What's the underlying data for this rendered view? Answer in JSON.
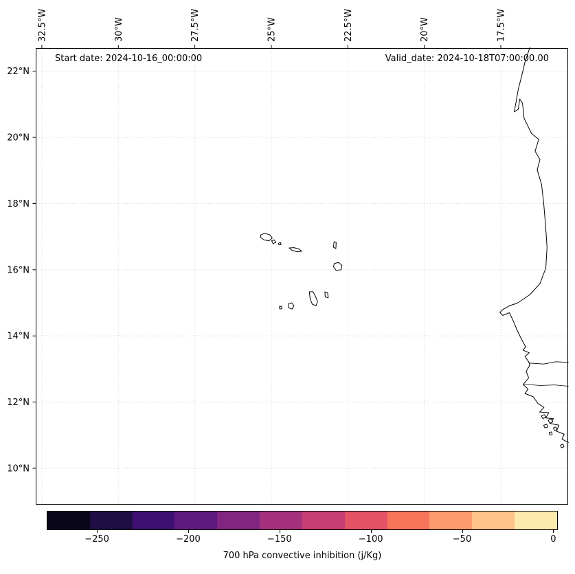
{
  "annotations": {
    "start_date": "Start date: 2024-10-16_00:00:00",
    "valid_date": "Valid_date: 2024-10-18T07:00:00.00"
  },
  "map": {
    "extent": {
      "lon_min": -32.7,
      "lon_max": -15.3,
      "lat_min": 8.9,
      "lat_max": 22.7
    },
    "axes": {
      "lon_ticks": [
        {
          "value": -32.5,
          "label": "32.5°W"
        },
        {
          "value": -30,
          "label": "30°W"
        },
        {
          "value": -27.5,
          "label": "27.5°W"
        },
        {
          "value": -25,
          "label": "25°W"
        },
        {
          "value": -22.5,
          "label": "22.5°W"
        },
        {
          "value": -20,
          "label": "20°W"
        },
        {
          "value": -17.5,
          "label": "17.5°W"
        }
      ],
      "lat_ticks": [
        {
          "value": 22,
          "label": "22°N"
        },
        {
          "value": 20,
          "label": "20°N"
        },
        {
          "value": 18,
          "label": "18°N"
        },
        {
          "value": 16,
          "label": "16°N"
        },
        {
          "value": 14,
          "label": "14°N"
        },
        {
          "value": 12,
          "label": "12°N"
        },
        {
          "value": 10,
          "label": "10°N"
        }
      ]
    },
    "grid": {
      "color": "#dcc7c7",
      "style": "dotted"
    },
    "coastlines": {
      "africa_mainland": [
        [
          -16.55,
          22.72
        ],
        [
          -16.72,
          22.25
        ],
        [
          -16.82,
          21.85
        ],
        [
          -16.93,
          21.45
        ],
        [
          -17.0,
          21.08
        ],
        [
          -17.06,
          20.77
        ],
        [
          -16.93,
          20.85
        ],
        [
          -16.88,
          21.16
        ],
        [
          -16.79,
          21.03
        ],
        [
          -16.74,
          20.58
        ],
        [
          -16.5,
          20.12
        ],
        [
          -16.26,
          19.94
        ],
        [
          -16.38,
          19.58
        ],
        [
          -16.22,
          19.33
        ],
        [
          -16.31,
          19.02
        ],
        [
          -16.17,
          18.58
        ],
        [
          -16.1,
          18.02
        ],
        [
          -16.04,
          17.38
        ],
        [
          -15.99,
          16.68
        ],
        [
          -16.03,
          16.05
        ],
        [
          -16.22,
          15.58
        ],
        [
          -16.56,
          15.24
        ],
        [
          -16.96,
          14.99
        ],
        [
          -17.22,
          14.91
        ],
        [
          -17.43,
          14.8
        ],
        [
          -17.53,
          14.71
        ],
        [
          -17.44,
          14.62
        ],
        [
          -17.22,
          14.7
        ],
        [
          -17.1,
          14.47
        ],
        [
          -16.97,
          14.18
        ],
        [
          -16.84,
          13.93
        ],
        [
          -16.69,
          13.67
        ],
        [
          -16.77,
          13.57
        ],
        [
          -16.57,
          13.49
        ],
        [
          -16.71,
          13.38
        ],
        [
          -16.59,
          13.22
        ],
        [
          -16.55,
          13.12
        ],
        [
          -16.67,
          12.93
        ],
        [
          -16.59,
          12.73
        ],
        [
          -16.77,
          12.53
        ],
        [
          -16.61,
          12.39
        ],
        [
          -16.71,
          12.26
        ],
        [
          -16.44,
          12.16
        ],
        [
          -16.29,
          11.96
        ],
        [
          -16.09,
          11.84
        ],
        [
          -16.23,
          11.7
        ],
        [
          -15.93,
          11.68
        ],
        [
          -16.03,
          11.52
        ],
        [
          -15.78,
          11.5
        ],
        [
          -15.88,
          11.35
        ],
        [
          -15.6,
          11.3
        ],
        [
          -15.68,
          11.12
        ],
        [
          -15.43,
          11.03
        ],
        [
          -15.5,
          10.88
        ],
        [
          -15.29,
          10.78
        ]
      ],
      "rivers": [
        [
          [
            -16.58,
            13.18
          ],
          [
            -16.1,
            13.15
          ],
          [
            -15.7,
            13.22
          ],
          [
            -15.29,
            13.2
          ]
        ],
        [
          [
            -16.75,
            12.54
          ],
          [
            -16.2,
            12.5
          ],
          [
            -15.75,
            12.52
          ],
          [
            -15.29,
            12.48
          ]
        ]
      ],
      "africa_islands": [
        [
          [
            -16.18,
            11.58
          ],
          [
            -16.08,
            11.62
          ],
          [
            -16.02,
            11.55
          ],
          [
            -16.12,
            11.5
          ]
        ],
        [
          [
            -15.95,
            11.45
          ],
          [
            -15.85,
            11.48
          ],
          [
            -15.8,
            11.4
          ],
          [
            -15.9,
            11.36
          ]
        ],
        [
          [
            -16.1,
            11.3
          ],
          [
            -16.0,
            11.33
          ],
          [
            -15.96,
            11.25
          ],
          [
            -16.06,
            11.22
          ]
        ],
        [
          [
            -15.78,
            11.22
          ],
          [
            -15.7,
            11.25
          ],
          [
            -15.66,
            11.17
          ],
          [
            -15.75,
            11.14
          ]
        ],
        [
          [
            -15.92,
            11.08
          ],
          [
            -15.84,
            11.1
          ],
          [
            -15.82,
            11.02
          ],
          [
            -15.9,
            11.0
          ]
        ],
        [
          [
            -15.55,
            10.7
          ],
          [
            -15.47,
            10.73
          ],
          [
            -15.44,
            10.65
          ],
          [
            -15.52,
            10.62
          ]
        ]
      ],
      "cape_verde_islands": [
        [
          [
            -25.36,
            17.05
          ],
          [
            -25.22,
            17.1
          ],
          [
            -25.06,
            17.06
          ],
          [
            -24.97,
            16.96
          ],
          [
            -25.07,
            16.88
          ],
          [
            -25.24,
            16.9
          ],
          [
            -25.34,
            16.97
          ]
        ],
        [
          [
            -24.99,
            16.88
          ],
          [
            -24.9,
            16.9
          ],
          [
            -24.85,
            16.83
          ],
          [
            -24.94,
            16.79
          ]
        ],
        [
          [
            -24.77,
            16.8
          ],
          [
            -24.7,
            16.82
          ],
          [
            -24.68,
            16.76
          ],
          [
            -24.75,
            16.75
          ]
        ],
        [
          [
            -24.42,
            16.66
          ],
          [
            -24.26,
            16.67
          ],
          [
            -24.08,
            16.62
          ],
          [
            -24.01,
            16.56
          ],
          [
            -24.16,
            16.54
          ],
          [
            -24.33,
            16.59
          ]
        ],
        [
          [
            -22.95,
            16.85
          ],
          [
            -22.88,
            16.82
          ],
          [
            -22.89,
            16.64
          ],
          [
            -22.97,
            16.68
          ]
        ],
        [
          [
            -22.94,
            16.19
          ],
          [
            -22.8,
            16.22
          ],
          [
            -22.69,
            16.13
          ],
          [
            -22.72,
            16.0
          ],
          [
            -22.88,
            15.98
          ],
          [
            -22.97,
            16.09
          ]
        ],
        [
          [
            -23.25,
            15.33
          ],
          [
            -23.16,
            15.3
          ],
          [
            -23.14,
            15.15
          ],
          [
            -23.24,
            15.18
          ]
        ],
        [
          [
            -23.76,
            15.33
          ],
          [
            -23.64,
            15.34
          ],
          [
            -23.56,
            15.2
          ],
          [
            -23.49,
            15.04
          ],
          [
            -23.54,
            14.91
          ],
          [
            -23.66,
            14.96
          ],
          [
            -23.73,
            15.12
          ]
        ],
        [
          [
            -24.44,
            14.97
          ],
          [
            -24.33,
            15.0
          ],
          [
            -24.26,
            14.91
          ],
          [
            -24.32,
            14.81
          ],
          [
            -24.44,
            14.85
          ]
        ],
        [
          [
            -24.74,
            14.88
          ],
          [
            -24.67,
            14.9
          ],
          [
            -24.65,
            14.83
          ],
          [
            -24.72,
            14.81
          ]
        ]
      ]
    }
  },
  "colorbar": {
    "label": "700 hPa convective inhibition (j/Kg)",
    "vmin": -277.5,
    "vmax": 2.5,
    "colors": [
      "#080618",
      "#1e0e44",
      "#3e1071",
      "#601a7f",
      "#822581",
      "#a5317d",
      "#c73e72",
      "#e45365",
      "#f7745b",
      "#fd9b6c",
      "#fec389",
      "#fdeaad"
    ],
    "ticks": [
      {
        "value": -250,
        "label": "−250"
      },
      {
        "value": -200,
        "label": "−200"
      },
      {
        "value": -150,
        "label": "−150"
      },
      {
        "value": -100,
        "label": "−100"
      },
      {
        "value": -50,
        "label": "−50"
      },
      {
        "value": 0,
        "label": "0"
      }
    ]
  },
  "chart_data": {
    "type": "map",
    "projection": "plate-carree",
    "title": "",
    "field_label": "700 hPa convective inhibition (j/Kg)",
    "extent_lon": [
      -32.7,
      -15.3
    ],
    "extent_lat": [
      8.9,
      22.7
    ],
    "lon_tick_values": [
      -32.5,
      -30,
      -27.5,
      -25,
      -22.5,
      -20,
      -17.5
    ],
    "lat_tick_values": [
      22,
      20,
      18,
      16,
      14,
      12,
      10
    ],
    "colorbar_range": [
      -277.5,
      2.5
    ],
    "colorbar_tick_values": [
      -250,
      -200,
      -150,
      -100,
      -50,
      0
    ],
    "colormap": "magma",
    "grid": true,
    "filled_field_visible": false
  }
}
